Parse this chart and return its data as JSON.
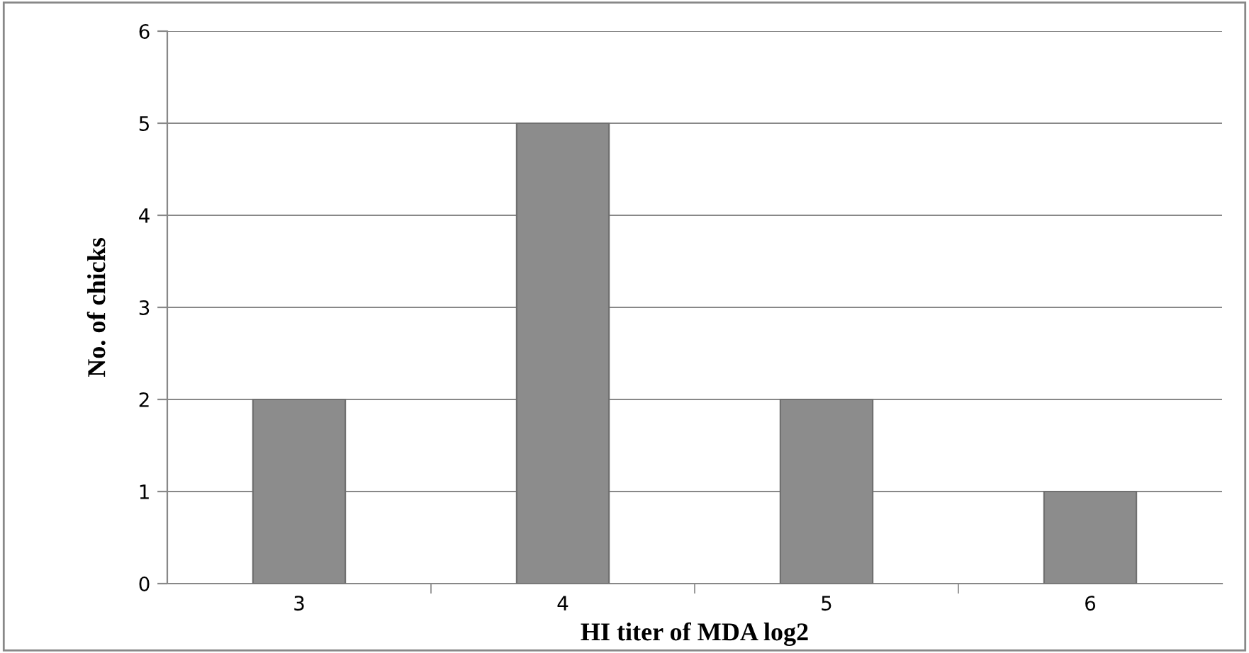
{
  "chart_data": {
    "type": "bar",
    "xlabel": "HI titer of MDA log2",
    "ylabel": "No. of chicks",
    "categories": [
      "3",
      "4",
      "5",
      "6"
    ],
    "values": [
      2,
      5,
      2,
      1
    ],
    "color": "#8c8c8c",
    "ylim": [
      0,
      6
    ],
    "yticks": [
      0,
      1,
      2,
      3,
      4,
      5,
      6
    ],
    "grid": "y"
  }
}
